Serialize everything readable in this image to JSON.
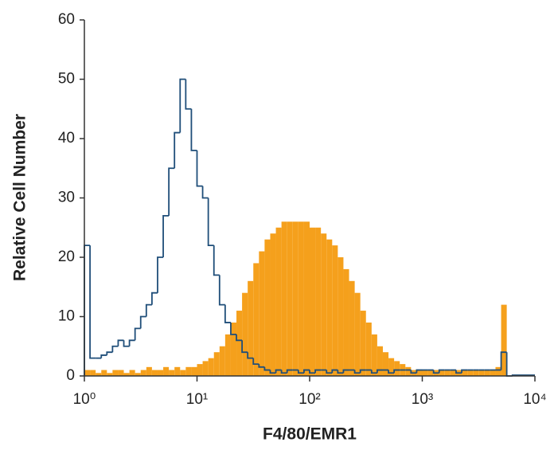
{
  "chart_data": {
    "type": "histogram",
    "x_label": "F4/80/EMR1",
    "y_label": "Relative Cell Number",
    "xlog": true,
    "xlim": [
      1,
      10000
    ],
    "ylim": [
      0,
      60
    ],
    "xticks": [
      {
        "value": 1,
        "label": "10⁰"
      },
      {
        "value": 10,
        "label": "10¹"
      },
      {
        "value": 100,
        "label": "10²"
      },
      {
        "value": 1000,
        "label": "10³"
      },
      {
        "value": 10000,
        "label": "10⁴"
      }
    ],
    "yticks": [
      0,
      10,
      20,
      30,
      40,
      50,
      60
    ],
    "bins": [
      1,
      1.122,
      1.259,
      1.413,
      1.585,
      1.778,
      1.995,
      2.239,
      2.512,
      2.818,
      3.162,
      3.548,
      3.981,
      4.467,
      5.012,
      5.623,
      6.31,
      7.079,
      7.943,
      8.913,
      10,
      11.22,
      12.59,
      14.13,
      15.85,
      17.78,
      19.95,
      22.39,
      25.12,
      28.18,
      31.62,
      35.48,
      39.81,
      44.67,
      50.12,
      56.23,
      63.1,
      70.79,
      79.43,
      89.13,
      100,
      112.2,
      125.9,
      141.3,
      158.5,
      177.8,
      199.5,
      223.9,
      251.2,
      281.8,
      316.2,
      354.8,
      398.1,
      446.7,
      501.2,
      562.3,
      631,
      707.9,
      794.3,
      891.3,
      1000,
      1122,
      1259,
      1413,
      1585,
      1778,
      1995,
      2239,
      2512,
      2818,
      3162,
      3548,
      3981,
      4467,
      5012,
      5623,
      6310
    ],
    "series": [
      {
        "color": "#f5a01c",
        "fill": true,
        "values": [
          1,
          1,
          0.5,
          1,
          0.5,
          1,
          1,
          0.5,
          1,
          0.5,
          1,
          1.5,
          1,
          1,
          1.5,
          1,
          1.5,
          1,
          1.5,
          1.5,
          2,
          2.5,
          3,
          4,
          5,
          7,
          9,
          11,
          14,
          16,
          19,
          21,
          23,
          24,
          25,
          26,
          26,
          26,
          26,
          26,
          25,
          25,
          24,
          23,
          22,
          20,
          18,
          16,
          14,
          11,
          9,
          7,
          5,
          4,
          3,
          2.5,
          2,
          1.5,
          1,
          1,
          1,
          1,
          1,
          1,
          1,
          1,
          1,
          1,
          1,
          1,
          1,
          1,
          1,
          1.5,
          12,
          0
        ]
      },
      {
        "color": "#1f4e79",
        "fill": false,
        "values": [
          22,
          3,
          3,
          3.5,
          4,
          5,
          6,
          5,
          6,
          8,
          10,
          12,
          14,
          20,
          27,
          35,
          41,
          50,
          45,
          38,
          32,
          30,
          22,
          17,
          12,
          9,
          7,
          6,
          4,
          3,
          2,
          1.5,
          1,
          0.5,
          1,
          0.5,
          1,
          1,
          0.5,
          1,
          0.5,
          1,
          1,
          0.5,
          1,
          0.5,
          1,
          1,
          0.5,
          1,
          1,
          0.5,
          1,
          1,
          0.5,
          1,
          1,
          1,
          0.5,
          1,
          1,
          1,
          0.5,
          1,
          1,
          1,
          0.5,
          1,
          1,
          1,
          1,
          1,
          1,
          1,
          4,
          0
        ]
      }
    ]
  }
}
